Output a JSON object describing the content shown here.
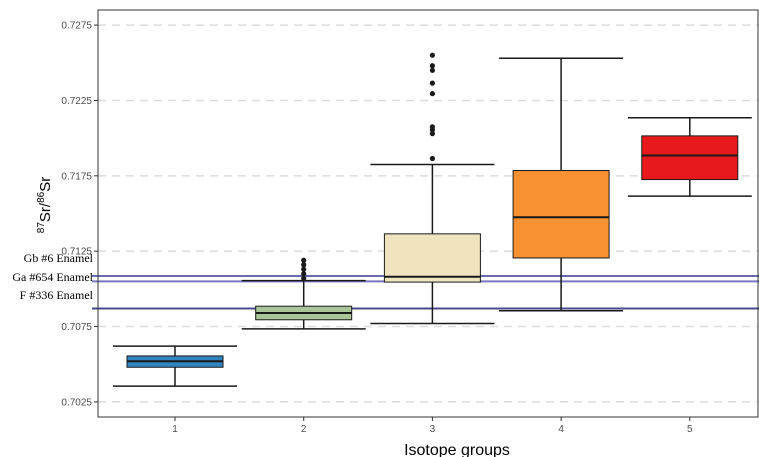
{
  "chart_data": {
    "type": "box",
    "xlabel": "Isotope groups",
    "ylabel": {
      "pre": "87",
      "a": "Sr/",
      "mid": "86",
      "b": "Sr"
    },
    "ylim": [
      0.7015,
      0.7285
    ],
    "categories": [
      "1",
      "2",
      "3",
      "4",
      "5"
    ],
    "y_ticks": [
      "0.7025",
      "0.7075",
      "0.7125",
      "0.7175",
      "0.7225",
      "0.7275"
    ],
    "grid": "horizontal-dashed",
    "boxes": [
      {
        "group": "1",
        "whisker_low": 0.70355,
        "q1": 0.7048,
        "median": 0.7052,
        "q3": 0.70555,
        "whisker_high": 0.7062,
        "outliers": [],
        "color": "#2f86c0"
      },
      {
        "group": "2",
        "whisker_low": 0.70735,
        "q1": 0.70795,
        "median": 0.7084,
        "q3": 0.70885,
        "whisker_high": 0.71055,
        "outliers": [
          0.7107,
          0.711,
          0.7113,
          0.7116,
          0.7119
        ],
        "color": "#a9c59a"
      },
      {
        "group": "3",
        "whisker_low": 0.7077,
        "q1": 0.71045,
        "median": 0.7108,
        "q3": 0.71365,
        "whisker_high": 0.71825,
        "outliers": [
          0.71865,
          0.7203,
          0.72055,
          0.72075,
          0.72295,
          0.72365,
          0.7245,
          0.7248,
          0.7255
        ],
        "color": "#efe3c0"
      },
      {
        "group": "4",
        "whisker_low": 0.70855,
        "q1": 0.71205,
        "median": 0.71475,
        "q3": 0.71785,
        "whisker_high": 0.7253,
        "outliers": [],
        "color": "#f79133"
      },
      {
        "group": "5",
        "whisker_low": 0.71615,
        "q1": 0.71725,
        "median": 0.71885,
        "q3": 0.72015,
        "whisker_high": 0.72135,
        "outliers": [],
        "color": "#e8191c"
      }
    ],
    "reference_lines": [
      {
        "label": "Gb #6 Enamel",
        "value": 0.71085,
        "color": "#6a6ab0"
      },
      {
        "label": "Ga #654 Enamel",
        "value": 0.7105,
        "color": "#7a76c0"
      },
      {
        "label": "F #336  Enamel",
        "value": 0.7087,
        "color": "#4a4a8c"
      }
    ]
  }
}
